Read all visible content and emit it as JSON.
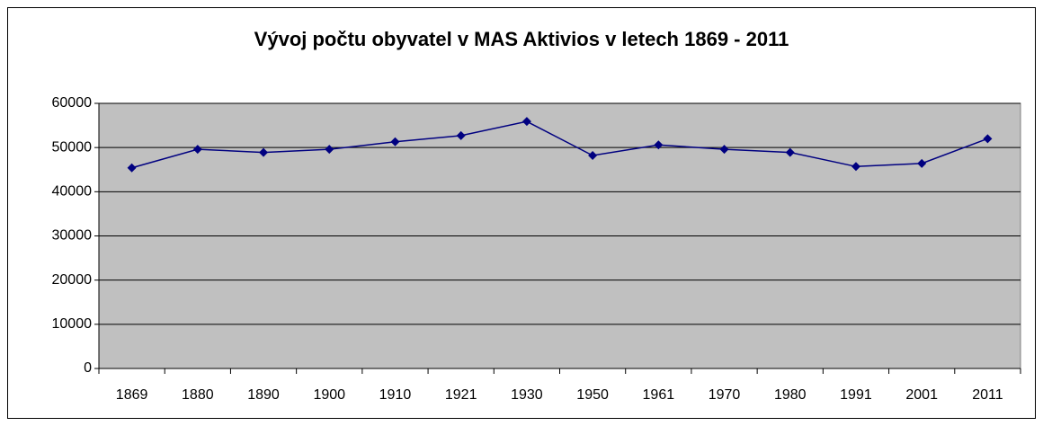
{
  "chart_data": {
    "type": "line",
    "title": "Vývoj počtu obyvatel v MAS Aktivios v letech 1869 - 2011",
    "categories": [
      "1869",
      "1880",
      "1890",
      "1900",
      "1910",
      "1921",
      "1930",
      "1950",
      "1961",
      "1970",
      "1980",
      "1991",
      "2001",
      "2011"
    ],
    "values": [
      45400,
      49600,
      48900,
      49600,
      51300,
      52700,
      55900,
      48200,
      50600,
      49600,
      48900,
      45700,
      46400,
      52000
    ],
    "color": "#000080",
    "ylim": [
      0,
      60000
    ],
    "yticks": [
      0,
      10000,
      20000,
      30000,
      40000,
      50000,
      60000
    ],
    "grid": true
  }
}
